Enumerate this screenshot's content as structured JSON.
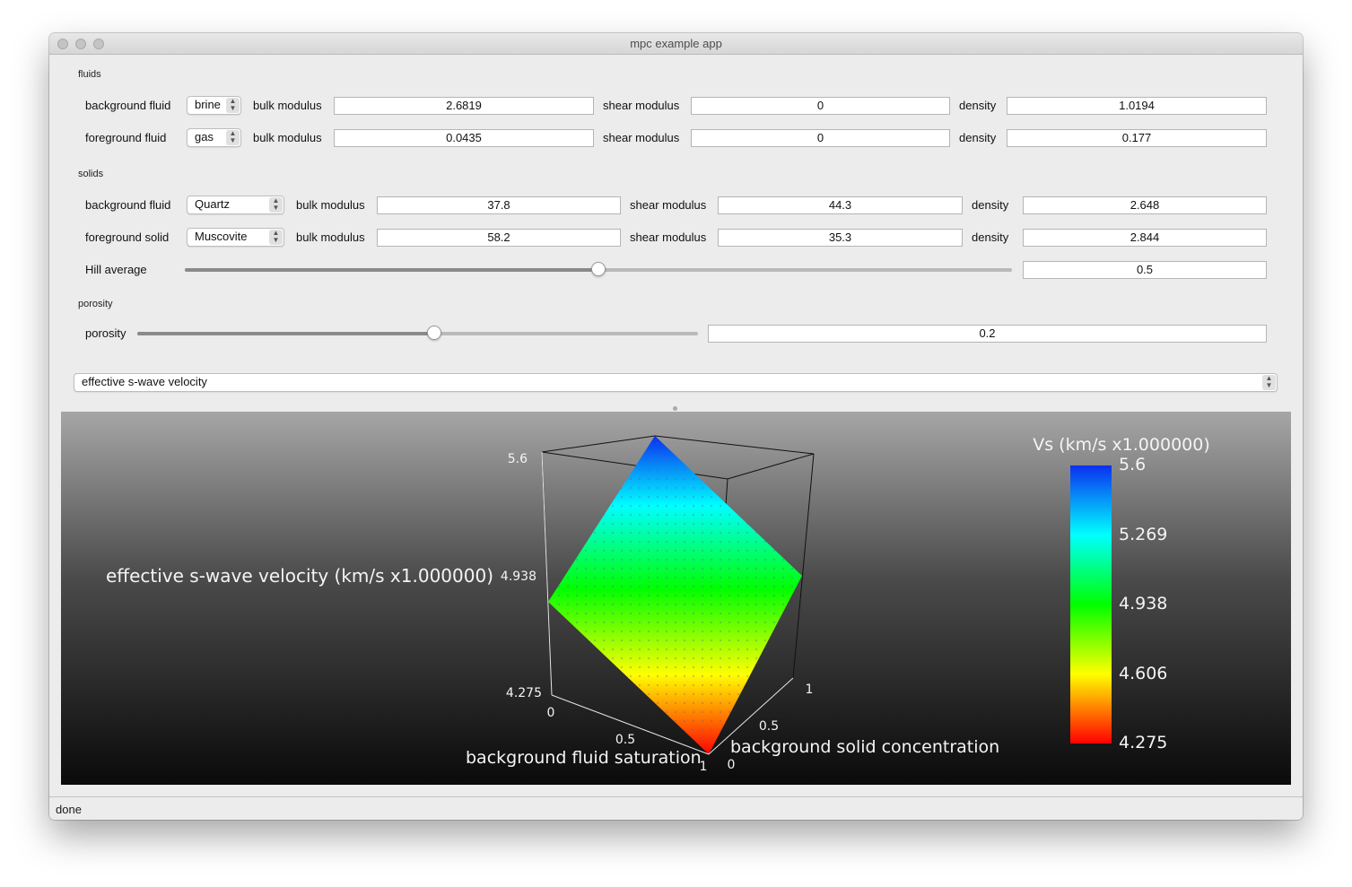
{
  "window": {
    "title": "mpc example app"
  },
  "fluids": {
    "section_label": "fluids",
    "background": {
      "label": "background fluid",
      "selected": "brine",
      "bulk_label": "bulk modulus",
      "bulk": "2.6819",
      "shear_label": "shear modulus",
      "shear": "0",
      "density_label": "density",
      "density": "1.0194"
    },
    "foreground": {
      "label": "foreground fluid",
      "selected": "gas",
      "bulk_label": "bulk modulus",
      "bulk": "0.0435",
      "shear_label": "shear modulus",
      "shear": "0",
      "density_label": "density",
      "density": "0.177"
    }
  },
  "solids": {
    "section_label": "solids",
    "background": {
      "label": "background fluid",
      "selected": "Quartz",
      "bulk_label": "bulk modulus",
      "bulk": "37.8",
      "shear_label": "shear modulus",
      "shear": "44.3",
      "density_label": "density",
      "density": "2.648"
    },
    "foreground": {
      "label": "foreground solid",
      "selected": "Muscovite",
      "bulk_label": "bulk modulus",
      "bulk": "58.2",
      "shear_label": "shear modulus",
      "shear": "35.3",
      "density_label": "density",
      "density": "2.844"
    },
    "hill": {
      "label": "Hill average",
      "value": "0.5",
      "level": 0.5
    }
  },
  "porosity": {
    "section_label": "porosity",
    "label": "porosity",
    "value": "0.2",
    "level": 0.53
  },
  "plot_selector": {
    "selected": "effective s-wave velocity"
  },
  "plot": {
    "z_label": "effective s-wave velocity (km/s x1.000000)",
    "x_label": "background fluid saturation",
    "y_label": "background solid concentration",
    "z_ticks": [
      "5.6",
      "4.938",
      "4.275"
    ],
    "x_ticks": [
      "0",
      "0.5",
      "1"
    ],
    "y_ticks": [
      "0",
      "0.5",
      "1"
    ],
    "colorbar": {
      "title": "Vs (km/s x1.000000)",
      "ticks": [
        "5.6",
        "5.269",
        "4.938",
        "4.606",
        "4.275"
      ]
    },
    "colors": {
      "high": "#0b2ff0",
      "upper": "#00ffff",
      "mid": "#00ff00",
      "lower": "#ffff00",
      "low": "#ff0000"
    }
  },
  "status": {
    "text": "done"
  }
}
